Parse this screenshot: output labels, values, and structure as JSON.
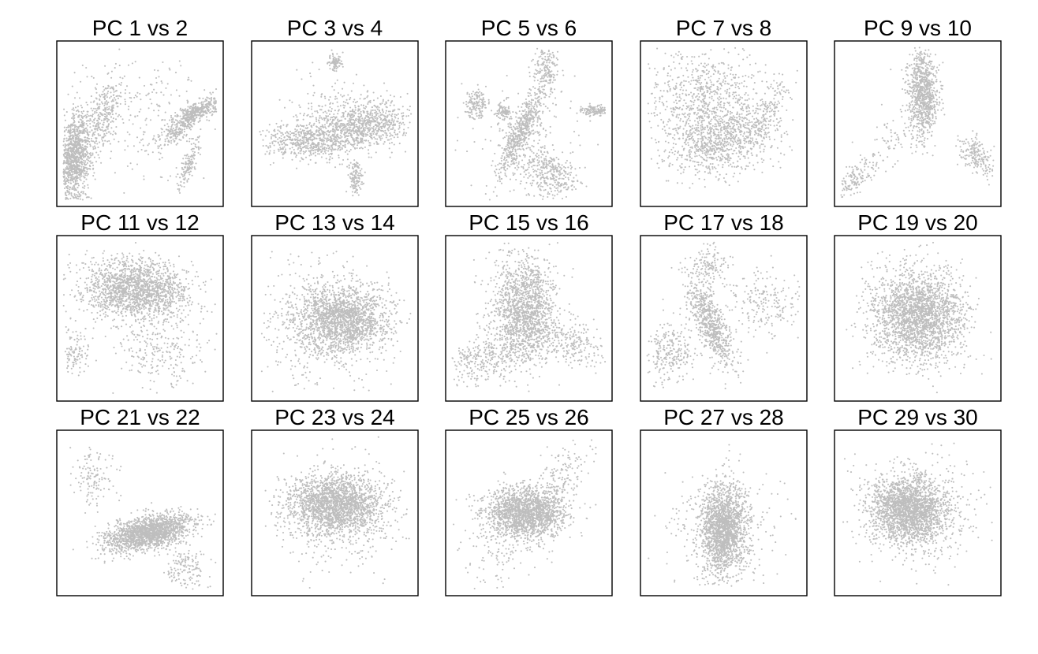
{
  "chart_data": {
    "type": "scatter",
    "layout": {
      "rows": 3,
      "cols": 5
    },
    "point_color": "#bebebe",
    "axes_visible": false,
    "panels": [
      {
        "title": "PC 1 vs 2",
        "clusters": [
          {
            "n": 1100,
            "cx": 0.11,
            "cy": 0.3,
            "sx": 0.045,
            "sy": 0.14,
            "rho": 0.3
          },
          {
            "n": 280,
            "cx": 0.28,
            "cy": 0.55,
            "sx": 0.05,
            "sy": 0.12,
            "rho": 0.5
          },
          {
            "n": 420,
            "cx": 0.84,
            "cy": 0.57,
            "sx": 0.075,
            "sy": 0.055,
            "rho": 0.75
          },
          {
            "n": 140,
            "cx": 0.79,
            "cy": 0.25,
            "sx": 0.03,
            "sy": 0.07,
            "rho": 0.8
          },
          {
            "n": 130,
            "cx": 0.72,
            "cy": 0.45,
            "sx": 0.05,
            "sy": 0.04,
            "rho": 0.7
          },
          {
            "n": 220,
            "cx": 0.55,
            "cy": 0.55,
            "sx": 0.2,
            "sy": 0.2,
            "rho": 0
          }
        ]
      },
      {
        "title": "PC 3 vs 4",
        "clusters": [
          {
            "n": 650,
            "cx": 0.36,
            "cy": 0.4,
            "sx": 0.14,
            "sy": 0.055,
            "rho": 0
          },
          {
            "n": 650,
            "cx": 0.7,
            "cy": 0.5,
            "sx": 0.13,
            "sy": 0.065,
            "rho": 0.1
          },
          {
            "n": 90,
            "cx": 0.5,
            "cy": 0.87,
            "sx": 0.02,
            "sy": 0.025,
            "rho": 0
          },
          {
            "n": 120,
            "cx": 0.63,
            "cy": 0.17,
            "sx": 0.022,
            "sy": 0.05,
            "rho": 0
          },
          {
            "n": 240,
            "cx": 0.55,
            "cy": 0.55,
            "sx": 0.17,
            "sy": 0.13,
            "rho": 0
          }
        ]
      },
      {
        "title": "PC 5 vs 6",
        "clusters": [
          {
            "n": 550,
            "cx": 0.45,
            "cy": 0.45,
            "sx": 0.07,
            "sy": 0.13,
            "rho": 0.85
          },
          {
            "n": 180,
            "cx": 0.6,
            "cy": 0.82,
            "sx": 0.035,
            "sy": 0.07,
            "rho": 0
          },
          {
            "n": 140,
            "cx": 0.18,
            "cy": 0.62,
            "sx": 0.035,
            "sy": 0.05,
            "rho": 0
          },
          {
            "n": 130,
            "cx": 0.9,
            "cy": 0.58,
            "sx": 0.05,
            "sy": 0.015,
            "rho": 0
          },
          {
            "n": 80,
            "cx": 0.35,
            "cy": 0.57,
            "sx": 0.025,
            "sy": 0.025,
            "rho": 0
          },
          {
            "n": 320,
            "cx": 0.63,
            "cy": 0.2,
            "sx": 0.08,
            "sy": 0.08,
            "rho": -0.3
          },
          {
            "n": 200,
            "cx": 0.48,
            "cy": 0.4,
            "sx": 0.16,
            "sy": 0.17,
            "rho": 0
          }
        ]
      },
      {
        "title": "PC 7 vs 8",
        "clusters": [
          {
            "n": 900,
            "cx": 0.48,
            "cy": 0.4,
            "sx": 0.17,
            "sy": 0.11,
            "rho": 0.3
          },
          {
            "n": 700,
            "cx": 0.36,
            "cy": 0.65,
            "sx": 0.17,
            "sy": 0.14,
            "rho": 0
          },
          {
            "n": 120,
            "cx": 0.78,
            "cy": 0.6,
            "sx": 0.06,
            "sy": 0.1,
            "rho": 0.6
          }
        ]
      },
      {
        "title": "PC 9 vs 10",
        "clusters": [
          {
            "n": 900,
            "cx": 0.53,
            "cy": 0.68,
            "sx": 0.045,
            "sy": 0.13,
            "rho": 0
          },
          {
            "n": 200,
            "cx": 0.86,
            "cy": 0.3,
            "sx": 0.06,
            "sy": 0.06,
            "rho": -0.5
          },
          {
            "n": 130,
            "cx": 0.12,
            "cy": 0.16,
            "sx": 0.06,
            "sy": 0.06,
            "rho": 0.7
          },
          {
            "n": 80,
            "cx": 0.32,
            "cy": 0.38,
            "sx": 0.1,
            "sy": 0.1,
            "rho": 0.5
          }
        ]
      },
      {
        "title": "PC 11 vs 12",
        "clusters": [
          {
            "n": 1700,
            "cx": 0.47,
            "cy": 0.68,
            "sx": 0.16,
            "sy": 0.09,
            "rho": -0.1
          },
          {
            "n": 110,
            "cx": 0.11,
            "cy": 0.3,
            "sx": 0.04,
            "sy": 0.07,
            "rho": 0
          },
          {
            "n": 260,
            "cx": 0.62,
            "cy": 0.32,
            "sx": 0.14,
            "sy": 0.12,
            "rho": 0
          }
        ]
      },
      {
        "title": "PC 13 vs 14",
        "clusters": [
          {
            "n": 1700,
            "cx": 0.55,
            "cy": 0.5,
            "sx": 0.14,
            "sy": 0.1,
            "rho": 0
          },
          {
            "n": 450,
            "cx": 0.42,
            "cy": 0.45,
            "sx": 0.2,
            "sy": 0.2,
            "rho": 0
          }
        ]
      },
      {
        "title": "PC 15 vs 16",
        "clusters": [
          {
            "n": 1500,
            "cx": 0.47,
            "cy": 0.55,
            "sx": 0.1,
            "sy": 0.16,
            "rho": 0
          },
          {
            "n": 300,
            "cx": 0.25,
            "cy": 0.25,
            "sx": 0.12,
            "sy": 0.07,
            "rho": 0.4
          },
          {
            "n": 250,
            "cx": 0.75,
            "cy": 0.35,
            "sx": 0.11,
            "sy": 0.07,
            "rho": -0.3
          }
        ]
      },
      {
        "title": "PC 17 vs 18",
        "clusters": [
          {
            "n": 700,
            "cx": 0.42,
            "cy": 0.47,
            "sx": 0.07,
            "sy": 0.14,
            "rho": -0.75
          },
          {
            "n": 250,
            "cx": 0.18,
            "cy": 0.3,
            "sx": 0.08,
            "sy": 0.1,
            "rho": 0
          },
          {
            "n": 220,
            "cx": 0.75,
            "cy": 0.6,
            "sx": 0.12,
            "sy": 0.1,
            "rho": 0
          },
          {
            "n": 120,
            "cx": 0.42,
            "cy": 0.82,
            "sx": 0.05,
            "sy": 0.06,
            "rho": 0
          }
        ]
      },
      {
        "title": "PC 19 vs 20",
        "clusters": [
          {
            "n": 2300,
            "cx": 0.5,
            "cy": 0.52,
            "sx": 0.14,
            "sy": 0.14,
            "rho": 0
          }
        ]
      },
      {
        "title": "PC 21 vs 22",
        "clusters": [
          {
            "n": 1700,
            "cx": 0.55,
            "cy": 0.38,
            "sx": 0.13,
            "sy": 0.055,
            "rho": 0.45
          },
          {
            "n": 130,
            "cx": 0.23,
            "cy": 0.7,
            "sx": 0.07,
            "sy": 0.1,
            "rho": 0
          },
          {
            "n": 150,
            "cx": 0.77,
            "cy": 0.17,
            "sx": 0.07,
            "sy": 0.07,
            "rho": 0
          }
        ]
      },
      {
        "title": "PC 23 vs 24",
        "clusters": [
          {
            "n": 2000,
            "cx": 0.5,
            "cy": 0.55,
            "sx": 0.14,
            "sy": 0.09,
            "rho": 0
          },
          {
            "n": 250,
            "cx": 0.55,
            "cy": 0.45,
            "sx": 0.2,
            "sy": 0.2,
            "rho": 0
          }
        ]
      },
      {
        "title": "PC 25 vs 26",
        "clusters": [
          {
            "n": 1800,
            "cx": 0.48,
            "cy": 0.5,
            "sx": 0.12,
            "sy": 0.08,
            "rho": 0
          },
          {
            "n": 120,
            "cx": 0.72,
            "cy": 0.75,
            "sx": 0.08,
            "sy": 0.1,
            "rho": 0.5
          },
          {
            "n": 100,
            "cx": 0.3,
            "cy": 0.25,
            "sx": 0.12,
            "sy": 0.12,
            "rho": 0
          }
        ]
      },
      {
        "title": "PC 27 vs 28",
        "clusters": [
          {
            "n": 1800,
            "cx": 0.5,
            "cy": 0.4,
            "sx": 0.07,
            "sy": 0.14,
            "rho": 0
          },
          {
            "n": 200,
            "cx": 0.5,
            "cy": 0.45,
            "sx": 0.2,
            "sy": 0.16,
            "rho": 0
          }
        ]
      },
      {
        "title": "PC 29 vs 30",
        "clusters": [
          {
            "n": 2100,
            "cx": 0.45,
            "cy": 0.52,
            "sx": 0.12,
            "sy": 0.1,
            "rho": 0
          },
          {
            "n": 300,
            "cx": 0.5,
            "cy": 0.5,
            "sx": 0.2,
            "sy": 0.18,
            "rho": 0
          }
        ]
      }
    ]
  }
}
